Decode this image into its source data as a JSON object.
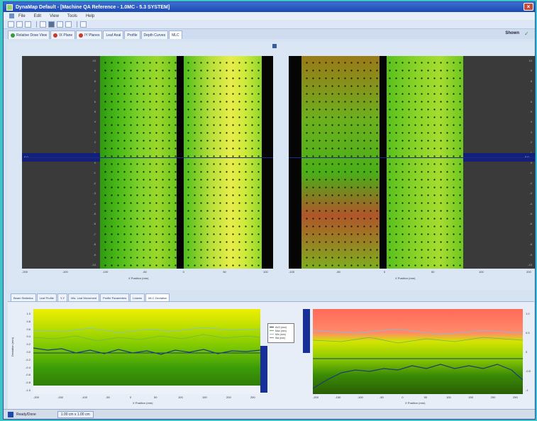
{
  "window": {
    "title": "DynaMap Default - [Machine QA Reference - 1.0MC - 5.3 SYSTEM]",
    "close_label": "×",
    "app_icon": "app-icon"
  },
  "menu": {
    "items": [
      "File",
      "Edit",
      "View",
      "Tools",
      "Help"
    ]
  },
  "toolbar": {
    "icons": [
      "new-icon",
      "open-icon",
      "save-icon",
      "print-icon",
      "camera-icon",
      "chart-icon",
      "grid-icon",
      "zoom-icon"
    ]
  },
  "top_tabs": [
    {
      "label": "Relative Dose View",
      "icon": "green-dot",
      "active": false
    },
    {
      "label": "IX Plane",
      "icon": "red-dot",
      "active": false
    },
    {
      "label": "IY Planes",
      "icon": "red-dot",
      "active": false
    },
    {
      "label": "Leaf Anal",
      "icon": "none",
      "active": false
    },
    {
      "label": "Profile",
      "icon": "none",
      "active": false
    },
    {
      "label": "Depth Curves",
      "icon": "none",
      "active": false
    },
    {
      "label": "MLC",
      "icon": "none",
      "active": true
    }
  ],
  "header_right": {
    "unit_label": "Shown",
    "status_icon": "check-icon"
  },
  "heatmaps": {
    "left": {
      "row_ticks": [
        "10",
        "9",
        "8",
        "7",
        "6",
        "5",
        "4",
        "3",
        "2",
        "1",
        "0",
        "-1",
        "-2",
        "-3",
        "-4",
        "-5",
        "-6",
        "-7",
        "-8",
        "-9",
        "-10"
      ],
      "selected_value": "0.0",
      "x_ticks": [
        "-200",
        "-100",
        "-100",
        "-50",
        "0",
        "50",
        "100"
      ],
      "x_label": "X Position (mm)"
    },
    "right": {
      "row_ticks": [
        "10",
        "9",
        "8",
        "7",
        "6",
        "5",
        "4",
        "3",
        "2",
        "1",
        "0",
        "-1",
        "-2",
        "-3",
        "-4",
        "-5",
        "-6",
        "-7",
        "-8",
        "-9",
        "-10"
      ],
      "selected_value": "0.0",
      "x_ticks": [
        "-100",
        "-50",
        "0",
        "50",
        "100",
        "200"
      ],
      "x_label": "X Position (mm)"
    }
  },
  "bottom_tabs": [
    {
      "label": "Beam Statistics",
      "active": false
    },
    {
      "label": "Leaf Profile",
      "active": false
    },
    {
      "label": "Y-Y",
      "active": false
    },
    {
      "label": "Mis. Leaf Movement",
      "active": false
    },
    {
      "label": "Profile Parameters",
      "active": false
    },
    {
      "label": "Leaves",
      "active": false
    },
    {
      "label": "MLC Deviation",
      "active": true
    }
  ],
  "bottom_charts": {
    "left": {
      "ylabel": "Deviation (mm)",
      "y_ticks": [
        "1.0",
        "0.8",
        "0.6",
        "0.4",
        "0.2",
        "0.0",
        "-0.2",
        "-0.4",
        "-0.6",
        "-0.8",
        "-1.0"
      ],
      "x_ticks": [
        "-200",
        "-150",
        "-100",
        "-50",
        "0",
        "50",
        "100",
        "150",
        "200",
        "250"
      ],
      "x_label": "X Position (mm)",
      "series": [
        {
          "name": "Max",
          "color": "#6db84a"
        },
        {
          "name": "Average",
          "color": "#1c3b78"
        },
        {
          "name": "Min",
          "color": "#7dc0e0"
        }
      ]
    },
    "right": {
      "y_ticks": [
        "1.0",
        "0.5",
        "0",
        "-0.5",
        "-1"
      ],
      "x_ticks": [
        "-200",
        "-150",
        "-100",
        "-50",
        "0",
        "50",
        "100",
        "150",
        "200",
        "250"
      ],
      "x_label": "X Position (mm)"
    }
  },
  "legend": {
    "entries": [
      {
        "label": "AVG (mm)",
        "color": "#1c3b78"
      },
      {
        "label": "Max (mm)",
        "color": "#6db84a"
      },
      {
        "label": "Min (mm)",
        "color": "#7dc0e0"
      },
      {
        "label": "Std (mm)",
        "color": "#888888"
      }
    ]
  },
  "statusbar": {
    "left_label": "Ready/Done",
    "field_value": "1.00 cm x 1.00 cm"
  }
}
